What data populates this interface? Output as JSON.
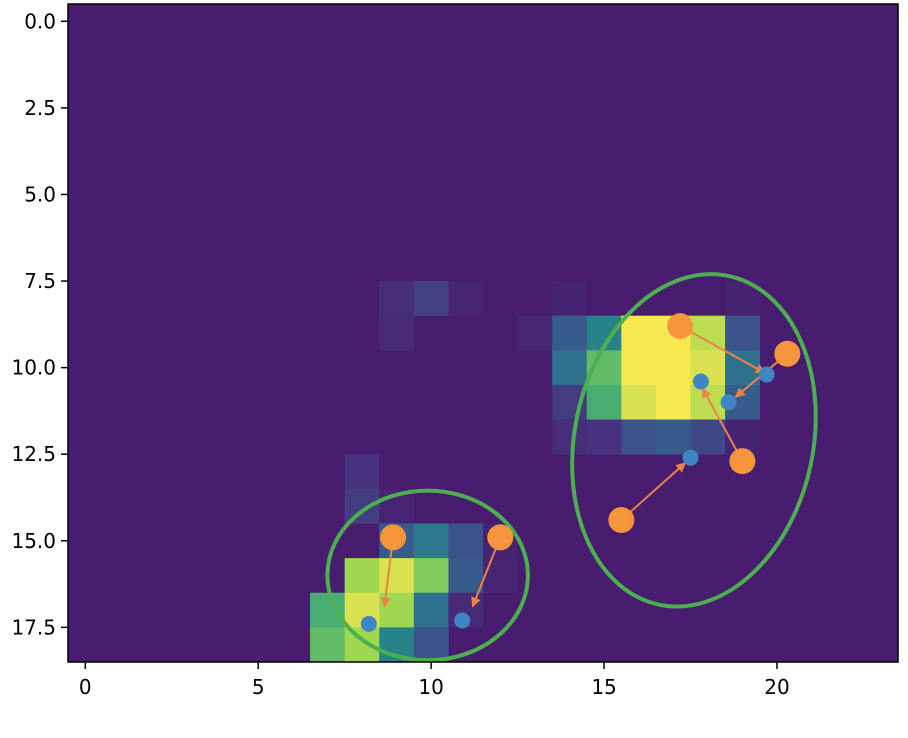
{
  "chart_data": {
    "type": "heatmap",
    "title": "",
    "xlabel": "",
    "ylabel": "",
    "xlim": [
      -0.5,
      23.5
    ],
    "ylim": [
      18.5,
      -0.5
    ],
    "y_inverted": true,
    "grid": false,
    "colormap": "viridis",
    "background_color": "#481c6e",
    "x_ticks": [
      0,
      5,
      10,
      15,
      20
    ],
    "x_tick_labels": [
      "0",
      "5",
      "10",
      "15",
      "20"
    ],
    "y_ticks": [
      0.0,
      2.5,
      5.0,
      7.5,
      10.0,
      12.5,
      15.0,
      17.5
    ],
    "y_tick_labels": [
      "0.0",
      "2.5",
      "5.0",
      "7.5",
      "10.0",
      "12.5",
      "15.0",
      "17.5"
    ],
    "cells": [
      [
        9,
        8,
        0.12
      ],
      [
        10,
        8,
        0.22
      ],
      [
        11,
        8,
        0.06
      ],
      [
        14,
        8,
        0.05
      ],
      [
        19,
        8,
        0.05
      ],
      [
        9,
        9,
        0.1
      ],
      [
        13,
        9,
        0.08
      ],
      [
        14,
        8.0,
        0.05
      ],
      [
        14,
        9,
        0.35
      ],
      [
        15,
        9,
        0.55
      ],
      [
        16,
        9,
        1.0
      ],
      [
        17,
        9,
        1.0
      ],
      [
        18,
        9,
        0.9
      ],
      [
        19,
        9,
        0.3
      ],
      [
        14,
        10,
        0.45
      ],
      [
        15,
        10,
        0.75
      ],
      [
        16,
        10,
        1.0
      ],
      [
        17,
        10,
        1.0
      ],
      [
        18,
        10,
        0.95
      ],
      [
        19,
        10,
        0.45
      ],
      [
        14,
        11,
        0.2
      ],
      [
        15,
        11,
        0.7
      ],
      [
        16,
        11,
        0.95
      ],
      [
        17,
        11,
        1.0
      ],
      [
        18,
        11,
        0.9
      ],
      [
        19,
        11,
        0.35
      ],
      [
        14,
        12,
        0.12
      ],
      [
        15,
        12,
        0.15
      ],
      [
        16,
        12,
        0.3
      ],
      [
        17,
        12,
        0.35
      ],
      [
        18,
        12,
        0.25
      ],
      [
        19,
        12,
        0.05
      ],
      [
        8,
        13,
        0.15
      ],
      [
        8,
        14,
        0.2
      ],
      [
        9,
        14,
        0.06
      ],
      [
        9,
        15,
        0.35
      ],
      [
        10,
        15,
        0.5
      ],
      [
        11,
        15,
        0.3
      ],
      [
        12,
        15,
        0.05
      ],
      [
        8,
        16,
        0.85
      ],
      [
        9,
        16,
        0.95
      ],
      [
        10,
        16,
        0.8
      ],
      [
        11,
        16,
        0.35
      ],
      [
        12,
        16,
        0.06
      ],
      [
        7,
        17,
        0.7
      ],
      [
        8,
        17,
        0.95
      ],
      [
        9,
        17,
        0.85
      ],
      [
        10,
        17,
        0.45
      ],
      [
        11,
        17,
        0.1
      ],
      [
        7,
        18,
        0.75
      ],
      [
        8,
        18,
        0.85
      ],
      [
        9,
        18,
        0.55
      ],
      [
        10,
        18,
        0.3
      ]
    ],
    "ellipses": [
      {
        "cx": 9.9,
        "cy": 16.0,
        "rx": 2.9,
        "ry": 2.45,
        "angle": 0,
        "color": "#4caf50"
      },
      {
        "cx": 17.6,
        "cy": 12.1,
        "rx": 3.45,
        "ry": 4.85,
        "angle": 12,
        "color": "#4caf50"
      }
    ],
    "points_orange": [
      [
        8.9,
        14.9
      ],
      [
        12.0,
        14.9
      ],
      [
        17.2,
        8.8
      ],
      [
        20.3,
        9.6
      ],
      [
        19.0,
        12.7
      ],
      [
        15.5,
        14.4
      ]
    ],
    "points_blue": [
      [
        8.2,
        17.4
      ],
      [
        10.9,
        17.3
      ],
      [
        19.7,
        10.2
      ],
      [
        18.6,
        11.0
      ],
      [
        17.8,
        10.4
      ],
      [
        17.5,
        12.6
      ]
    ],
    "arrows": [
      {
        "from": [
          8.9,
          14.9
        ],
        "to": [
          8.65,
          16.9
        ]
      },
      {
        "from": [
          12.0,
          14.9
        ],
        "to": [
          11.2,
          16.9
        ]
      },
      {
        "from": [
          17.2,
          8.8
        ],
        "to": [
          19.65,
          10.15
        ]
      },
      {
        "from": [
          20.3,
          9.6
        ],
        "to": [
          18.8,
          10.85
        ]
      },
      {
        "from": [
          19.0,
          12.7
        ],
        "to": [
          17.85,
          10.6
        ]
      },
      {
        "from": [
          15.5,
          14.4
        ],
        "to": [
          17.35,
          12.75
        ]
      }
    ],
    "orange_color": "#f5963c",
    "blue_color": "#3f87c4",
    "arrow_color": "#e8844a"
  }
}
